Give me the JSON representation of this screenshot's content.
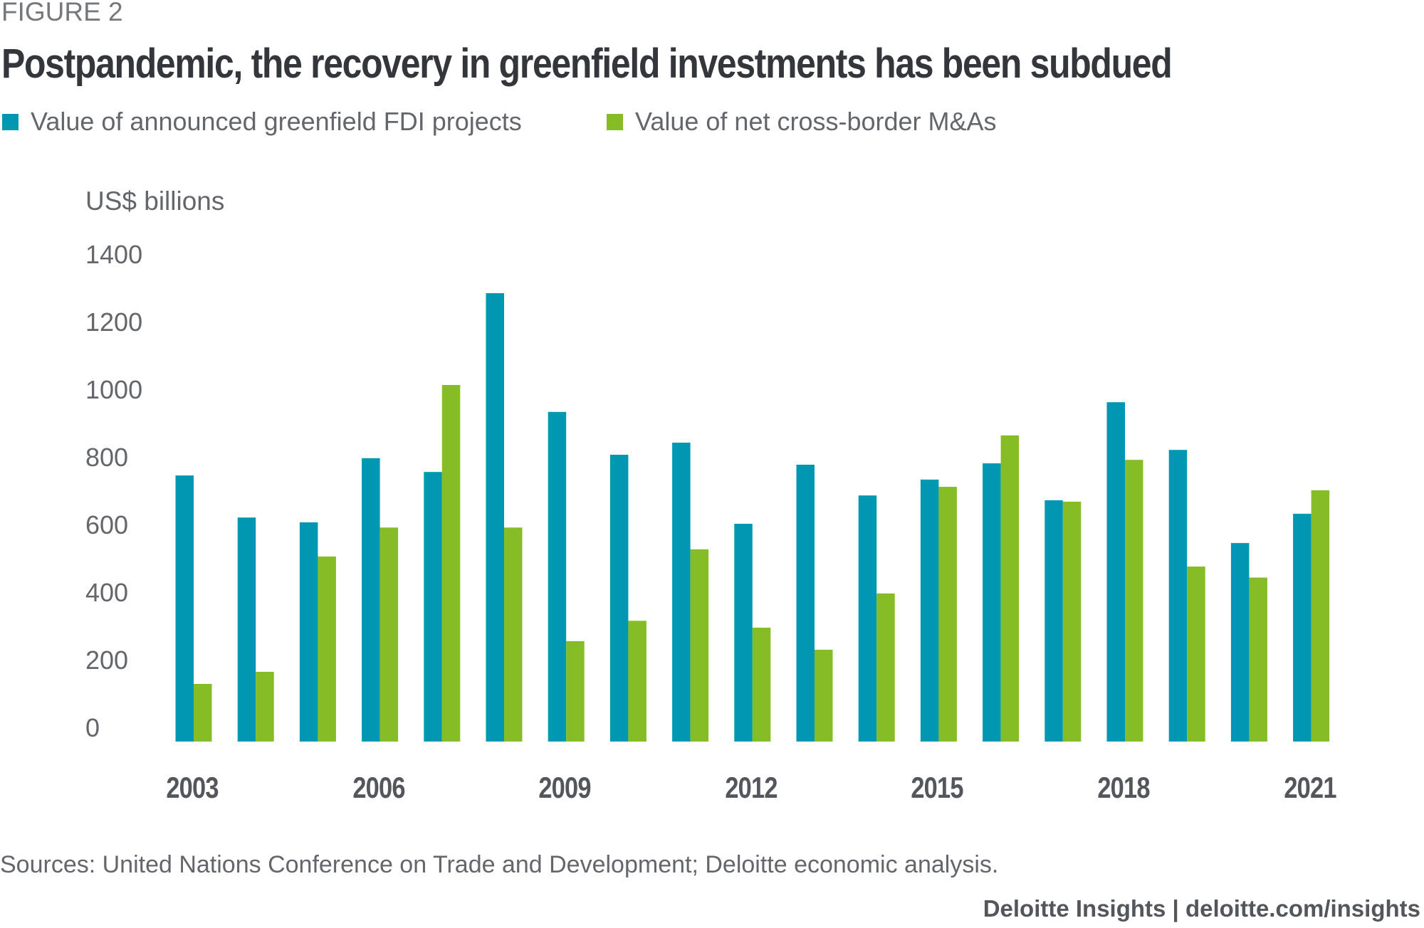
{
  "figure_label": "FIGURE 2",
  "title": "Postpandemic, the recovery in greenfield investments has been subdued",
  "legend": [
    {
      "label": "Value of announced greenfield FDI projects",
      "color": "#0097B2"
    },
    {
      "label": "Value of net cross-border M&As",
      "color": "#86BC25"
    }
  ],
  "unit_label": "US$ billions",
  "y_ticks": [
    "1400",
    "1200",
    "1000",
    "800",
    "600",
    "400",
    "200",
    "0"
  ],
  "x_tick_labels": [
    "2003",
    "2006",
    "2009",
    "2012",
    "2015",
    "2018",
    "2021"
  ],
  "sources": "Sources: United Nations Conference on Trade and Development; Deloitte economic analysis.",
  "footer": "Deloitte Insights | deloitte.com/insights",
  "chart_data": {
    "type": "bar",
    "title": "Postpandemic, the recovery in greenfield investments has been subdued",
    "xlabel": "",
    "ylabel": "US$ billions",
    "ylim": [
      0,
      1400
    ],
    "yticks": [
      0,
      200,
      400,
      600,
      800,
      1000,
      1200,
      1400
    ],
    "grid": false,
    "legend_position": "top-left",
    "categories": [
      "2003",
      "2004",
      "2005",
      "2006",
      "2007",
      "2008",
      "2009",
      "2010",
      "2011",
      "2012",
      "2013",
      "2014",
      "2015",
      "2016",
      "2017",
      "2018",
      "2019",
      "2020",
      "2021"
    ],
    "x_tick_labels_shown": [
      "2003",
      "2006",
      "2009",
      "2012",
      "2015",
      "2018",
      "2021"
    ],
    "series": [
      {
        "name": "Value of announced greenfield FDI projects",
        "color": "#0097B2",
        "values": [
          771,
          649,
          635,
          821,
          781,
          1299,
          955,
          831,
          866,
          631,
          802,
          713,
          759,
          806,
          699,
          983,
          845,
          575,
          660
        ]
      },
      {
        "name": "Value of net cross-border M&As",
        "color": "#86BC25",
        "values": [
          167,
          202,
          536,
          620,
          1033,
          620,
          291,
          350,
          557,
          330,
          266,
          429,
          738,
          887,
          695,
          816,
          507,
          475,
          728
        ]
      }
    ]
  }
}
